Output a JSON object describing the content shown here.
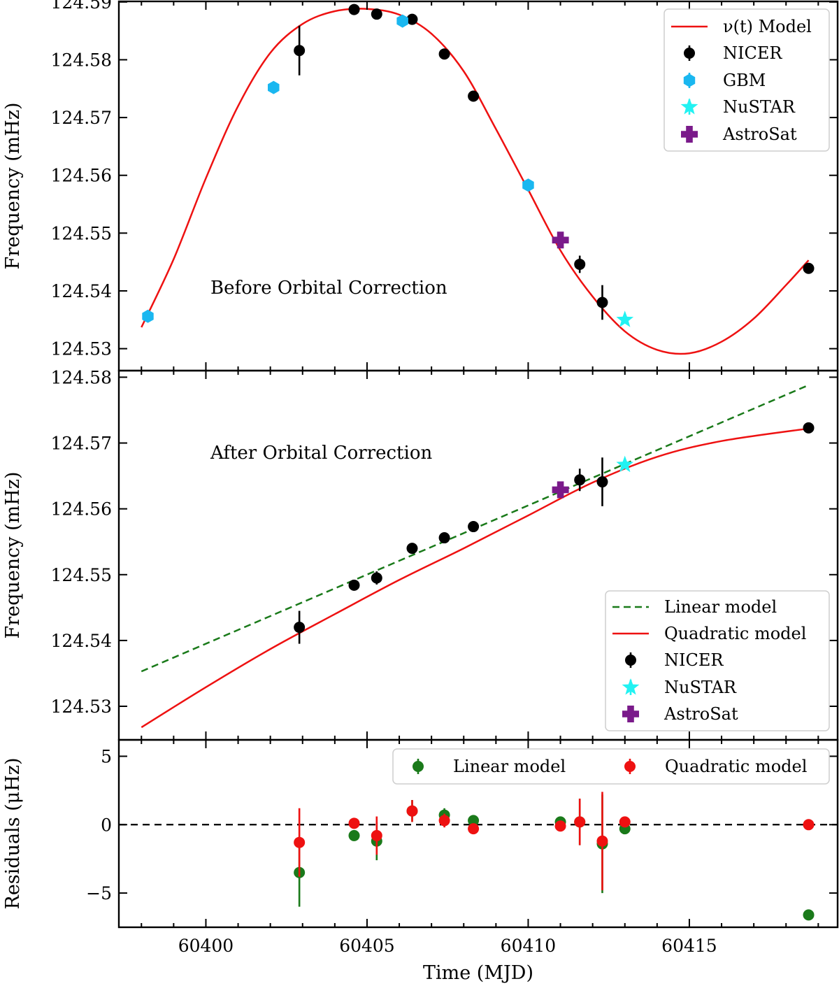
{
  "chart_data": [
    {
      "panel": "top",
      "type": "scatter",
      "ylabel": "Frequency (mHz)",
      "xlim": [
        60397.3,
        60419.6
      ],
      "ylim": [
        124.5262,
        124.5901
      ],
      "yticks": [
        "124.53",
        "124.54",
        "124.55",
        "124.56",
        "124.57",
        "124.58",
        "124.59"
      ],
      "ytick_values": [
        124.53,
        124.54,
        124.55,
        124.56,
        124.57,
        124.58,
        124.59
      ],
      "annotation": "Before Orbital Correction",
      "legend_position": "top-right",
      "model": {
        "name": "ν(t) Model",
        "color": "#ee1111",
        "x": [
          60398.0,
          60399.0,
          60400.0,
          60401.0,
          60402.0,
          60403.0,
          60404.0,
          60405.0,
          60406.0,
          60407.0,
          60408.0,
          60409.0,
          60410.0,
          60411.0,
          60412.0,
          60413.0,
          60414.0,
          60415.0,
          60416.0,
          60417.0,
          60418.0,
          60418.7
        ],
        "y": [
          124.5337,
          124.5455,
          124.5595,
          124.572,
          124.5812,
          124.5862,
          124.5884,
          124.5888,
          124.5878,
          124.5845,
          124.578,
          124.568,
          124.5575,
          124.547,
          124.539,
          124.533,
          124.5298,
          124.5292,
          124.5312,
          124.5352,
          124.541,
          124.5453
        ]
      },
      "series": [
        {
          "name": "NICER",
          "marker": "circle",
          "color": "#000000",
          "x": [
            60402.9,
            60404.6,
            60405.3,
            60406.4,
            60407.4,
            60408.3,
            60411.6,
            60412.3,
            60418.7
          ],
          "y": [
            124.5816,
            124.5887,
            124.5879,
            124.587,
            124.581,
            124.5737,
            124.5446,
            124.538,
            124.5439
          ],
          "yerr": [
            0.0043,
            0.0002,
            0.0002,
            0.0004,
            0.0002,
            0.0002,
            0.0015,
            0.003,
            0.0002
          ]
        },
        {
          "name": "GBM",
          "marker": "hexagon",
          "color": "#1ab7f0",
          "x": [
            60398.2,
            60402.1,
            60406.1,
            60410.0
          ],
          "y": [
            124.5356,
            124.5752,
            124.5867,
            124.5583
          ],
          "yerr": [
            0.0003,
            0.0003,
            0.0003,
            0.0003
          ]
        },
        {
          "name": "NuSTAR",
          "marker": "star",
          "color": "#22f2f2",
          "x": [
            60413.0
          ],
          "y": [
            124.535
          ],
          "yerr": [
            0.0003
          ]
        },
        {
          "name": "AstroSat",
          "marker": "plus",
          "color": "#7a1a8a",
          "x": [
            60411.0
          ],
          "y": [
            124.5488
          ],
          "yerr": [
            0.0003
          ]
        }
      ],
      "legend": [
        "ν(t) Model",
        "NICER",
        "GBM",
        "NuSTAR",
        "AstroSat"
      ]
    },
    {
      "panel": "middle",
      "type": "scatter",
      "ylabel": "Frequency (mHz)",
      "xlim": [
        60397.3,
        60419.6
      ],
      "ylim": [
        124.5249,
        124.581
      ],
      "yticks": [
        "124.53",
        "124.54",
        "124.55",
        "124.56",
        "124.57",
        "124.58"
      ],
      "ytick_values": [
        124.53,
        124.54,
        124.55,
        124.56,
        124.57,
        124.58
      ],
      "annotation": "After Orbital Correction",
      "legend_position": "bottom-right",
      "linear_model": {
        "name": "Linear model",
        "color": "#1a7a1a",
        "x": [
          60398.0,
          60418.7
        ],
        "y": [
          124.5353,
          124.5788
        ]
      },
      "quadratic_model": {
        "name": "Quadratic model",
        "color": "#ee1111",
        "x": [
          60398.0,
          60400.0,
          60402.0,
          60404.0,
          60406.0,
          60408.0,
          60410.0,
          60412.0,
          60414.0,
          60416.0,
          60418.7
        ],
        "y": [
          124.5268,
          124.5329,
          124.5387,
          124.544,
          124.5492,
          124.554,
          124.559,
          124.564,
          124.5679,
          124.5703,
          124.5722
        ]
      },
      "series": [
        {
          "name": "NICER",
          "marker": "circle",
          "color": "#000000",
          "x": [
            60402.9,
            60404.6,
            60405.3,
            60406.4,
            60407.4,
            60408.3,
            60411.6,
            60412.3,
            60418.7
          ],
          "y": [
            124.542,
            124.5484,
            124.5495,
            124.554,
            124.5556,
            124.5573,
            124.5644,
            124.5641,
            124.5723
          ],
          "yerr": [
            0.0025,
            0.0002,
            0.001,
            0.0003,
            0.0003,
            0.0003,
            0.0017,
            0.0037,
            0.0002
          ]
        },
        {
          "name": "NuSTAR",
          "marker": "star",
          "color": "#22f2f2",
          "x": [
            60413.0
          ],
          "y": [
            124.5667
          ],
          "yerr": [
            0.0003
          ]
        },
        {
          "name": "AstroSat",
          "marker": "plus",
          "color": "#7a1a8a",
          "x": [
            60411.0
          ],
          "y": [
            124.5629
          ],
          "yerr": [
            0.0003
          ]
        }
      ],
      "legend": [
        "Linear model",
        "Quadratic model",
        "NICER",
        "NuSTAR",
        "AstroSat"
      ]
    },
    {
      "panel": "bottom",
      "type": "scatter",
      "ylabel": "Residuals (μHz)",
      "xlabel": "Time (MJD)",
      "xlim": [
        60397.3,
        60419.6
      ],
      "ylim": [
        -7.5,
        6.2
      ],
      "yticks": [
        "5",
        "0",
        "−5"
      ],
      "ytick_values": [
        5,
        0,
        -5
      ],
      "xticks": [
        "60400",
        "60405",
        "60410",
        "60415"
      ],
      "xtick_values": [
        60400,
        60405,
        60410,
        60415
      ],
      "zero_line": true,
      "legend_position": "top-right",
      "series": [
        {
          "name": "Linear model",
          "marker": "circle",
          "color": "#1a7a1a",
          "x": [
            60402.9,
            60404.6,
            60405.3,
            60406.4,
            60407.4,
            60408.3,
            60411.0,
            60411.6,
            60412.3,
            60413.0,
            60418.7
          ],
          "y": [
            -3.5,
            -0.8,
            -1.2,
            1.0,
            0.7,
            0.3,
            0.2,
            0.2,
            -1.4,
            -0.3,
            -6.6
          ],
          "yerr": [
            2.5,
            0.2,
            1.4,
            0.8,
            0.5,
            0.2,
            0.2,
            1.7,
            3.6,
            0.2,
            0.2
          ]
        },
        {
          "name": "Quadratic model",
          "marker": "circle",
          "color": "#ee1111",
          "x": [
            60402.9,
            60404.6,
            60405.3,
            60406.4,
            60407.4,
            60408.3,
            60411.0,
            60411.6,
            60412.3,
            60413.0,
            60418.7
          ],
          "y": [
            -1.3,
            0.1,
            -0.8,
            1.0,
            0.3,
            -0.3,
            -0.1,
            0.2,
            -1.2,
            0.2,
            0.0
          ],
          "yerr": [
            2.5,
            0.2,
            1.4,
            0.8,
            0.5,
            0.2,
            0.2,
            1.7,
            3.6,
            0.2,
            0.2
          ]
        }
      ],
      "legend": [
        "Linear model",
        "Quadratic model"
      ]
    }
  ]
}
